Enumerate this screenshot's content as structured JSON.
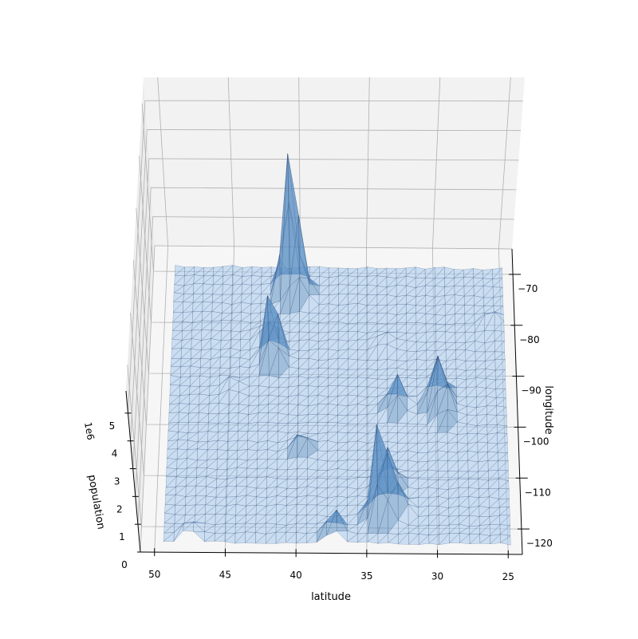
{
  "chart_data": {
    "type": "surface3d",
    "title": "",
    "xlabel": "latitude",
    "ylabel": "longitude",
    "zlabel": "population",
    "z_offset_text": "1e6",
    "xlim": [
      51,
      24
    ],
    "ylim": [
      -125,
      -65
    ],
    "zlim": [
      0,
      5800000
    ],
    "x_ticks": [
      "50",
      "45",
      "40",
      "35",
      "30",
      "25"
    ],
    "y_ticks": [
      "−70",
      "−80",
      "−90",
      "−100",
      "−110",
      "−120"
    ],
    "z_ticks": [
      "0",
      "1",
      "2",
      "3",
      "4",
      "5"
    ],
    "grid": true,
    "surface_color": "#a6c8ec",
    "edge_color": "#1f3b66",
    "pane_color": "#f2f2f2",
    "peaks": [
      {
        "lat": 40.7,
        "lon": -74.0,
        "population": 5300000
      },
      {
        "lat": 41.9,
        "lon": -87.6,
        "population": 2700000
      },
      {
        "lat": 34.0,
        "lon": -118.2,
        "population": 3800000
      },
      {
        "lat": 29.8,
        "lon": -95.4,
        "population": 2200000
      },
      {
        "lat": 33.4,
        "lon": -112.1,
        "population": 1500000
      },
      {
        "lat": 39.9,
        "lon": -75.2,
        "population": 1500000
      },
      {
        "lat": 32.8,
        "lon": -96.8,
        "population": 1300000
      },
      {
        "lat": 32.7,
        "lon": -117.2,
        "population": 1300000
      },
      {
        "lat": 29.4,
        "lon": -98.5,
        "population": 1300000
      },
      {
        "lat": 37.3,
        "lon": -121.9,
        "population": 1000000
      },
      {
        "lat": 47.6,
        "lon": -122.3,
        "population": 700000
      },
      {
        "lat": 42.3,
        "lon": -83.0,
        "population": 700000
      },
      {
        "lat": 39.7,
        "lon": -105.0,
        "population": 700000
      },
      {
        "lat": 44.9,
        "lon": -93.2,
        "population": 400000
      },
      {
        "lat": 25.8,
        "lon": -80.2,
        "population": 450000
      },
      {
        "lat": 33.7,
        "lon": -84.4,
        "population": 450000
      }
    ]
  }
}
